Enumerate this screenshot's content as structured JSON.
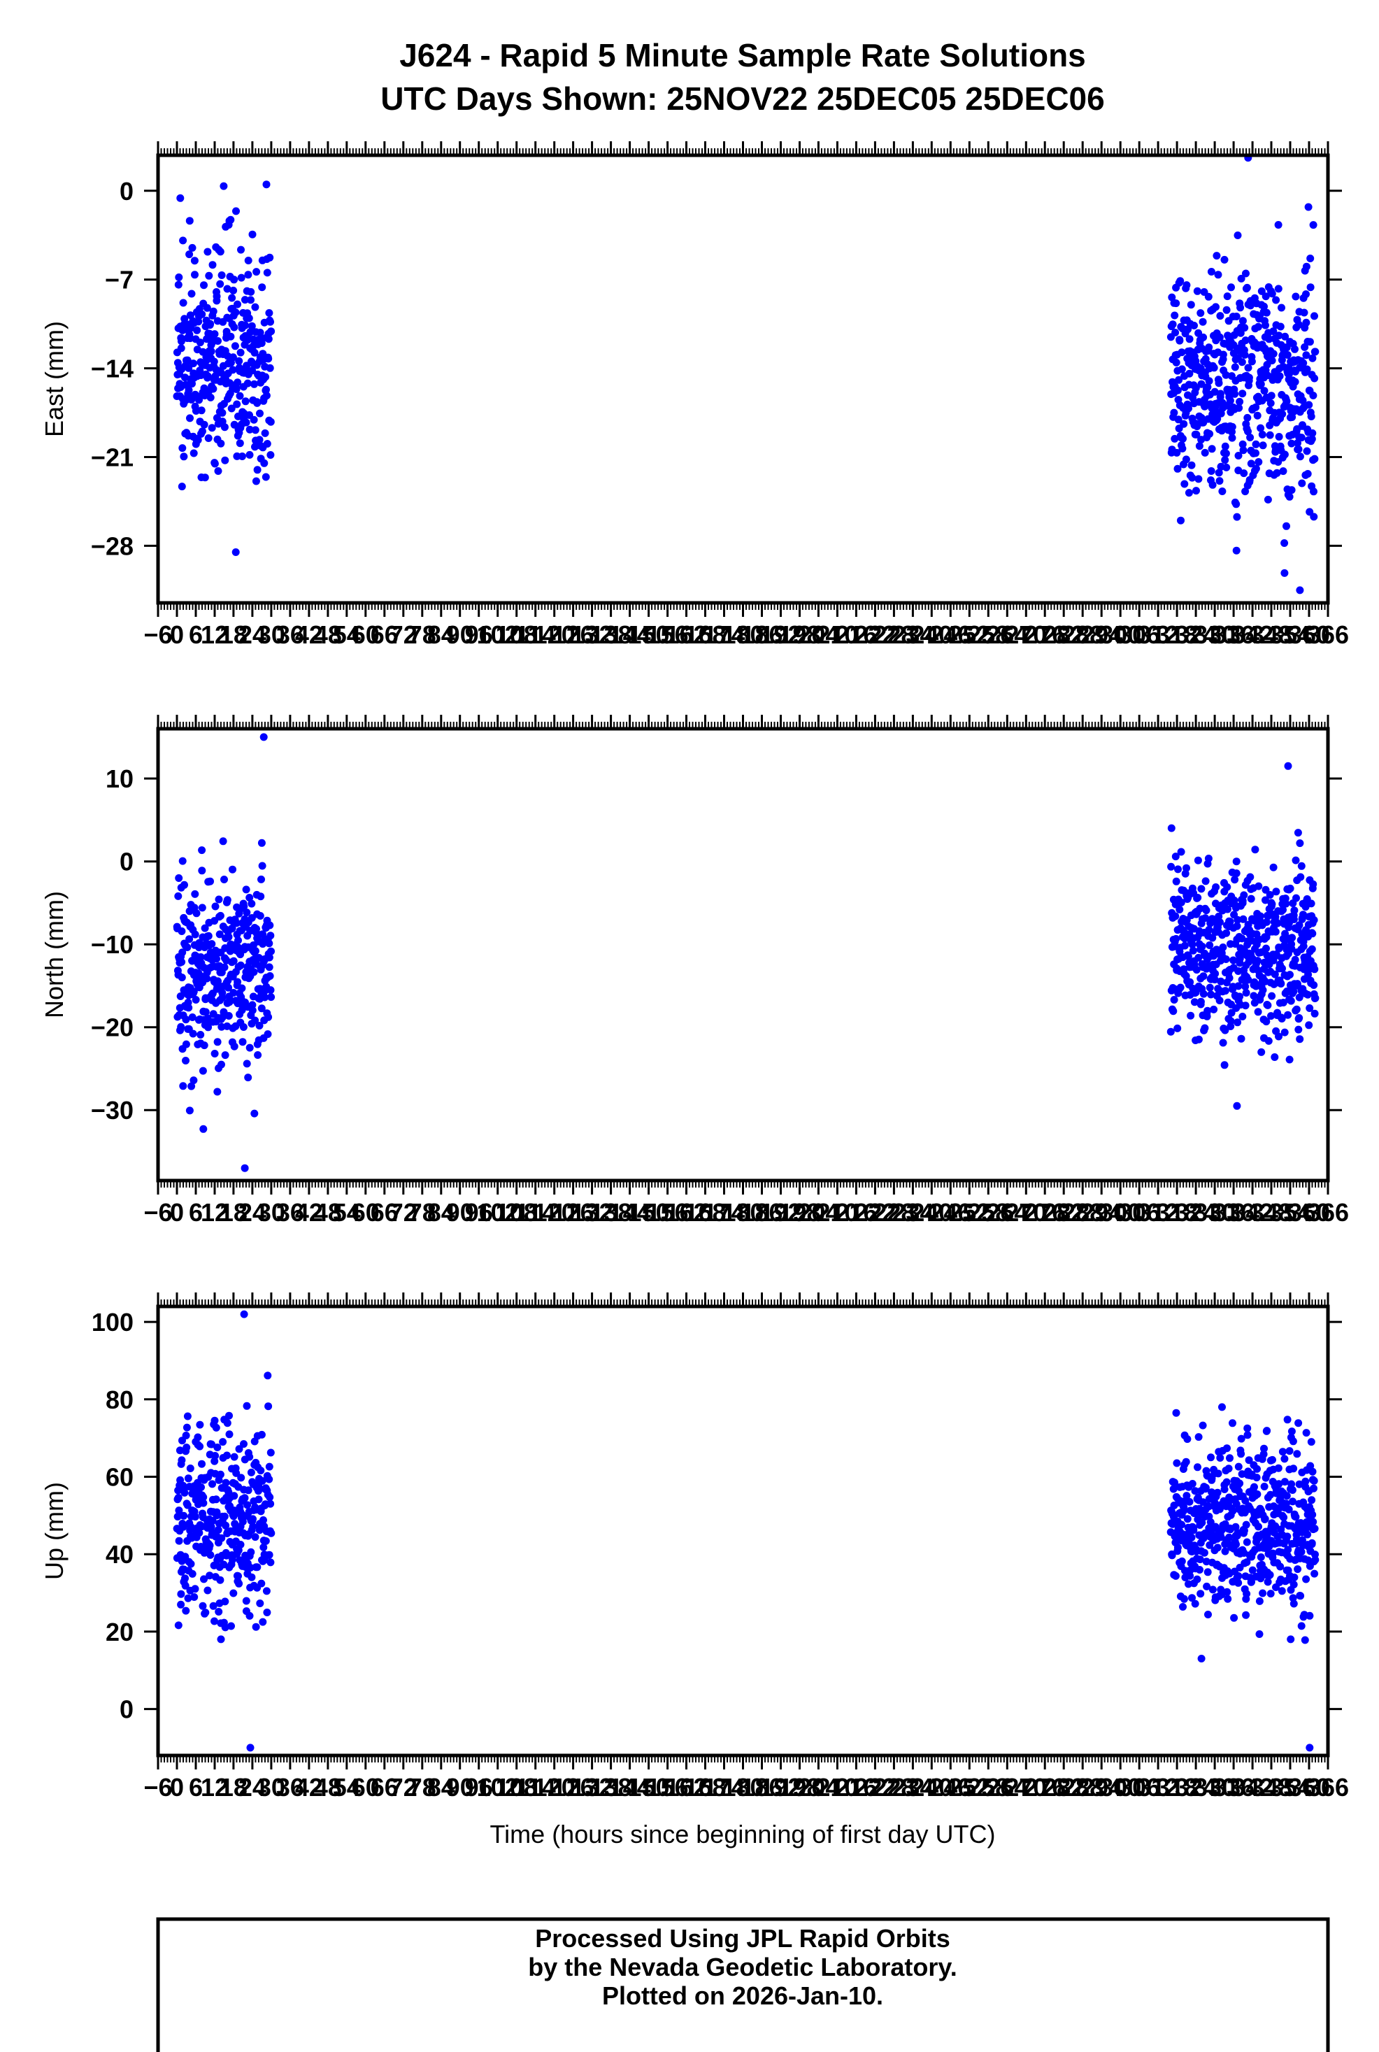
{
  "title_line1": "J624 - Rapid 5 Minute Sample Rate Solutions",
  "title_line2": "UTC Days Shown:  25NOV22 25DEC05 25DEC06",
  "xlabel": "Time (hours since beginning of first day UTC)",
  "footer": {
    "line1": "Processed Using JPL Rapid Orbits",
    "line2": "by the Nevada Geodetic Laboratory.",
    "line3": "Plotted on 2026-Jan-10."
  },
  "colors": {
    "points": "#0000ff",
    "frame": "#000000"
  },
  "chart_data": [
    {
      "type": "scatter",
      "ylabel": "East (mm)",
      "xlim": [
        -6,
        366
      ],
      "ylim": [
        -32.5,
        2.8
      ],
      "yticks": [
        0,
        -7,
        -14,
        -21,
        -28
      ],
      "xticks": [
        -6,
        0,
        6,
        12,
        18,
        24,
        30,
        36,
        42,
        48,
        54,
        60,
        66,
        72,
        78,
        84,
        90,
        96,
        102,
        108,
        114,
        120,
        126,
        132,
        138,
        144,
        150,
        156,
        162,
        168,
        174,
        180,
        186,
        192,
        198,
        204,
        210,
        216,
        222,
        228,
        234,
        240,
        246,
        252,
        258,
        264,
        270,
        276,
        282,
        288,
        294,
        300,
        306,
        312,
        318,
        324,
        330,
        336,
        342,
        348,
        354,
        360,
        366
      ],
      "clusters": [
        {
          "x_range": [
            0,
            30
          ],
          "y_center": -13.5,
          "y_spread": 4.5,
          "y_min": -28.5,
          "y_max": 0.5
        },
        {
          "x_range": [
            316,
            362
          ],
          "y_center": -15.5,
          "y_spread": 4.5,
          "y_min": -31.5,
          "y_max": 2.6
        }
      ]
    },
    {
      "type": "scatter",
      "ylabel": "North (mm)",
      "xlim": [
        -6,
        366
      ],
      "ylim": [
        -38.5,
        16
      ],
      "yticks": [
        10,
        0,
        -10,
        -20,
        -30
      ],
      "xticks": [
        -6,
        0,
        6,
        12,
        18,
        24,
        30,
        36,
        42,
        48,
        54,
        60,
        66,
        72,
        78,
        84,
        90,
        96,
        102,
        108,
        114,
        120,
        126,
        132,
        138,
        144,
        150,
        156,
        162,
        168,
        174,
        180,
        186,
        192,
        198,
        204,
        210,
        216,
        222,
        228,
        234,
        240,
        246,
        252,
        258,
        264,
        270,
        276,
        282,
        288,
        294,
        300,
        306,
        312,
        318,
        324,
        330,
        336,
        342,
        348,
        354,
        360,
        366
      ],
      "clusters": [
        {
          "x_range": [
            0,
            30
          ],
          "y_center": -13,
          "y_spread": 6,
          "y_min": -37,
          "y_max": 15
        },
        {
          "x_range": [
            316,
            362
          ],
          "y_center": -10.5,
          "y_spread": 5.5,
          "y_min": -29.5,
          "y_max": 11.5
        }
      ]
    },
    {
      "type": "scatter",
      "ylabel": "Up (mm)",
      "xlim": [
        -6,
        366
      ],
      "ylim": [
        -12,
        104
      ],
      "yticks": [
        100,
        80,
        60,
        40,
        20,
        0
      ],
      "xticks": [
        -6,
        0,
        6,
        12,
        18,
        24,
        30,
        36,
        42,
        48,
        54,
        60,
        66,
        72,
        78,
        84,
        90,
        96,
        102,
        108,
        114,
        120,
        126,
        132,
        138,
        144,
        150,
        156,
        162,
        168,
        174,
        180,
        186,
        192,
        198,
        204,
        210,
        216,
        222,
        228,
        234,
        240,
        246,
        252,
        258,
        264,
        270,
        276,
        282,
        288,
        294,
        300,
        306,
        312,
        318,
        324,
        330,
        336,
        342,
        348,
        354,
        360,
        366
      ],
      "clusters": [
        {
          "x_range": [
            0,
            30
          ],
          "y_center": 48,
          "y_spread": 13,
          "y_min": -10,
          "y_max": 102
        },
        {
          "x_range": [
            316,
            362
          ],
          "y_center": 47,
          "y_spread": 11,
          "y_min": -10,
          "y_max": 78
        }
      ]
    }
  ]
}
